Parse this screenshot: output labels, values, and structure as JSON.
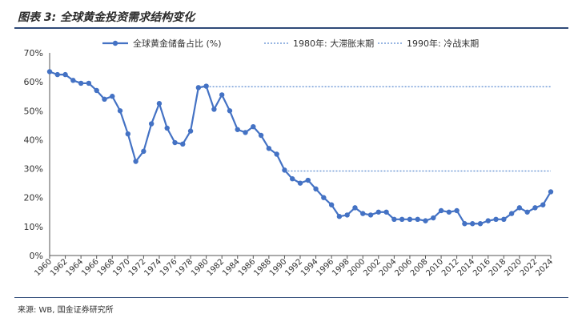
{
  "title": "图表 3: 全球黄金投资需求结构变化",
  "source": "来源: WB, 国金证券研究所",
  "colors": {
    "series": "#4472c4",
    "reference": "#5b8bd0",
    "rule": "#2f4a78"
  },
  "chart_data": {
    "type": "line",
    "title": "",
    "xlabel": "",
    "ylabel": "",
    "ylim": [
      0,
      70
    ],
    "yticks": [
      "0%",
      "10%",
      "20%",
      "30%",
      "40%",
      "50%",
      "60%",
      "70%"
    ],
    "grid": false,
    "legend_position": "top",
    "x": [
      1960,
      1961,
      1962,
      1963,
      1964,
      1965,
      1966,
      1967,
      1968,
      1969,
      1970,
      1971,
      1972,
      1973,
      1974,
      1975,
      1976,
      1977,
      1978,
      1979,
      1980,
      1981,
      1982,
      1983,
      1984,
      1985,
      1986,
      1987,
      1988,
      1989,
      1990,
      1991,
      1992,
      1993,
      1994,
      1995,
      1996,
      1997,
      1998,
      1999,
      2000,
      2001,
      2002,
      2003,
      2004,
      2005,
      2006,
      2007,
      2008,
      2009,
      2010,
      2011,
      2012,
      2013,
      2014,
      2015,
      2016,
      2017,
      2018,
      2019,
      2020,
      2021,
      2022,
      2023,
      2024
    ],
    "xticks": [
      "1960",
      "1962",
      "1964",
      "1966",
      "1968",
      "1970",
      "1972",
      "1974",
      "1976",
      "1978",
      "1980",
      "1982",
      "1984",
      "1986",
      "1988",
      "1990",
      "1992",
      "1994",
      "1996",
      "1998",
      "2000",
      "2002",
      "2004",
      "2006",
      "2008",
      "2010",
      "2012",
      "2014",
      "2016",
      "2018",
      "2020",
      "2022",
      "2024"
    ],
    "series": [
      {
        "name": "全球黄金储备占比 (%)",
        "values": [
          63.5,
          62.5,
          62.5,
          60.5,
          59.5,
          59.5,
          57,
          54,
          55,
          50,
          42,
          32.5,
          36,
          45.5,
          52.5,
          44,
          39,
          38.5,
          43,
          58,
          58.5,
          50.5,
          55.5,
          50,
          43.5,
          42.5,
          44.5,
          41.5,
          37,
          35,
          29.5,
          26.5,
          25,
          26,
          23,
          20,
          17.5,
          13.5,
          14,
          16.5,
          14.5,
          14,
          15,
          15,
          12.5,
          12.5,
          12.5,
          12.5,
          12,
          13,
          15.5,
          15,
          15.5,
          11,
          11,
          11,
          12,
          12.5,
          12.5,
          14.5,
          16.5,
          15,
          16.5,
          17.5,
          22
        ]
      }
    ],
    "reference_lines": [
      {
        "name": "1980年: 大滞胀末期",
        "value": 58.3,
        "from": 1980,
        "to": 2024
      },
      {
        "name": "1990年: 冷战末期",
        "value": 29.2,
        "from": 1990,
        "to": 2024
      }
    ]
  }
}
